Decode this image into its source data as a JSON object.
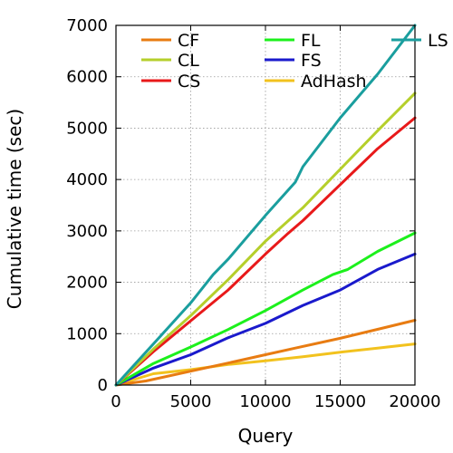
{
  "chart_data": {
    "type": "line",
    "title": "",
    "xlabel": "Query",
    "ylabel": "Cumulative time (sec)",
    "xlim": [
      0,
      20000
    ],
    "ylim": [
      0,
      7000
    ],
    "x_ticks": [
      0,
      5000,
      10000,
      15000,
      20000
    ],
    "y_ticks": [
      0,
      1000,
      2000,
      3000,
      4000,
      5000,
      6000,
      7000
    ],
    "x_tick_labels": [
      "0",
      "5000",
      "10000",
      "15000",
      "20000"
    ],
    "y_tick_labels": [
      "0",
      "1000",
      "2000",
      "3000",
      "4000",
      "5000",
      "6000",
      "7000"
    ],
    "grid": true,
    "legend_position": "top",
    "series": [
      {
        "name": "CF",
        "color": "#e87c12",
        "points": [
          [
            0,
            0
          ],
          [
            2000,
            80
          ],
          [
            5000,
            270
          ],
          [
            8000,
            460
          ],
          [
            10000,
            590
          ],
          [
            12000,
            720
          ],
          [
            15000,
            910
          ],
          [
            18000,
            1120
          ],
          [
            20000,
            1260
          ]
        ]
      },
      {
        "name": "CL",
        "color": "#b5cf2b",
        "points": [
          [
            0,
            0
          ],
          [
            2500,
            700
          ],
          [
            5000,
            1350
          ],
          [
            7500,
            2050
          ],
          [
            10000,
            2800
          ],
          [
            12500,
            3450
          ],
          [
            15000,
            4200
          ],
          [
            17500,
            4950
          ],
          [
            20000,
            5680
          ]
        ]
      },
      {
        "name": "CS",
        "color": "#e8191a",
        "points": [
          [
            0,
            0
          ],
          [
            2500,
            650
          ],
          [
            5000,
            1250
          ],
          [
            7500,
            1850
          ],
          [
            10000,
            2550
          ],
          [
            11500,
            2950
          ],
          [
            12500,
            3200
          ],
          [
            15000,
            3900
          ],
          [
            17500,
            4600
          ],
          [
            20000,
            5200
          ]
        ]
      },
      {
        "name": "FL",
        "color": "#1cf01c",
        "points": [
          [
            0,
            0
          ],
          [
            2500,
            420
          ],
          [
            5000,
            740
          ],
          [
            7500,
            1080
          ],
          [
            10000,
            1450
          ],
          [
            12500,
            1850
          ],
          [
            14500,
            2150
          ],
          [
            15500,
            2250
          ],
          [
            17500,
            2600
          ],
          [
            20000,
            2960
          ]
        ]
      },
      {
        "name": "FS",
        "color": "#1a1acc",
        "points": [
          [
            0,
            0
          ],
          [
            2500,
            330
          ],
          [
            5000,
            590
          ],
          [
            7500,
            920
          ],
          [
            10000,
            1200
          ],
          [
            12500,
            1550
          ],
          [
            15000,
            1850
          ],
          [
            17500,
            2250
          ],
          [
            20000,
            2550
          ]
        ]
      },
      {
        "name": "AdHash",
        "color": "#f2c21e",
        "points": [
          [
            0,
            0
          ],
          [
            2500,
            220
          ],
          [
            5000,
            300
          ],
          [
            7500,
            400
          ],
          [
            10000,
            470
          ],
          [
            12500,
            550
          ],
          [
            15000,
            640
          ],
          [
            17500,
            720
          ],
          [
            20000,
            800
          ]
        ]
      },
      {
        "name": "LS",
        "color": "#1a9e9e",
        "points": [
          [
            0,
            0
          ],
          [
            2500,
            800
          ],
          [
            5000,
            1600
          ],
          [
            6500,
            2150
          ],
          [
            7500,
            2450
          ],
          [
            10000,
            3300
          ],
          [
            12000,
            3950
          ],
          [
            12500,
            4250
          ],
          [
            15000,
            5200
          ],
          [
            17500,
            6050
          ],
          [
            20000,
            7000
          ]
        ]
      }
    ]
  }
}
